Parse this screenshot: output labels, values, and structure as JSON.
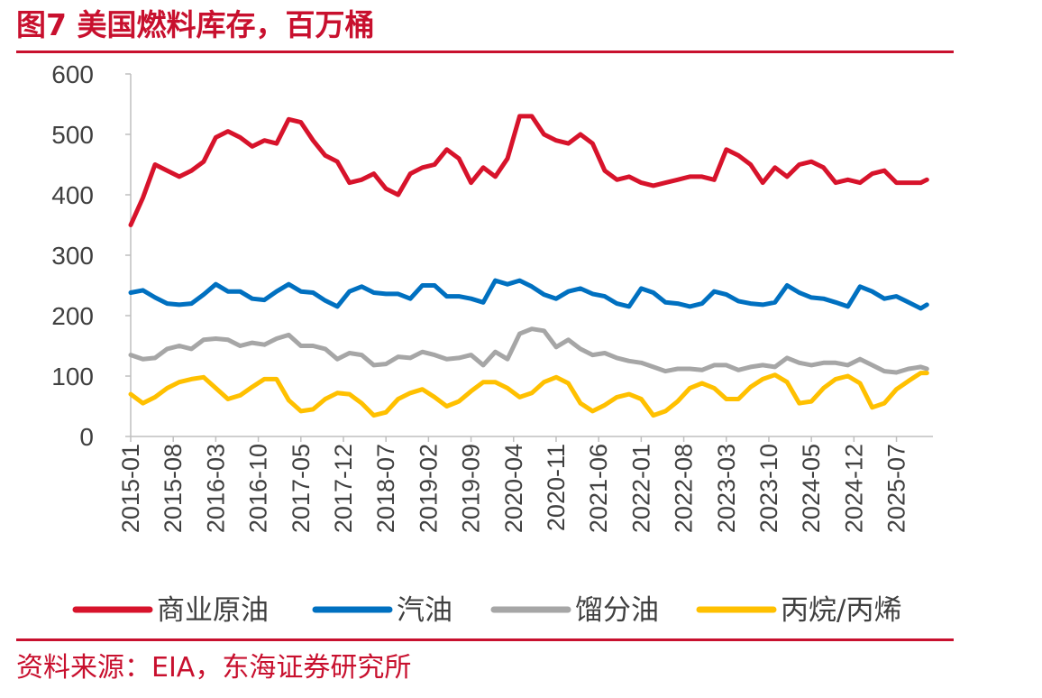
{
  "figure": {
    "title": "图7  美国燃料库存，百万桶",
    "source": "资料来源：EIA，东海证券研究所"
  },
  "chart_data": {
    "type": "line",
    "ylim": [
      0,
      600
    ],
    "yticks": [
      0,
      100,
      200,
      300,
      400,
      500,
      600
    ],
    "x_range": [
      "2015-01",
      "2026-01"
    ],
    "xtick_labels": [
      "2015-01",
      "2015-08",
      "2016-03",
      "2016-10",
      "2017-05",
      "2017-12",
      "2018-07",
      "2019-02",
      "2019-09",
      "2020-04",
      "2020-11",
      "2021-06",
      "2022-01",
      "2022-08",
      "2023-03",
      "2023-10",
      "2024-05",
      "2024-12",
      "2025-07"
    ],
    "grid": false,
    "legend_position": "bottom",
    "series": [
      {
        "name": "商业原油",
        "color": "#d7132b",
        "points": [
          [
            "2015-01",
            350
          ],
          [
            "2015-03",
            395
          ],
          [
            "2015-05",
            450
          ],
          [
            "2015-07",
            440
          ],
          [
            "2015-09",
            430
          ],
          [
            "2015-11",
            440
          ],
          [
            "2016-01",
            455
          ],
          [
            "2016-03",
            495
          ],
          [
            "2016-05",
            505
          ],
          [
            "2016-07",
            495
          ],
          [
            "2016-09",
            480
          ],
          [
            "2016-11",
            490
          ],
          [
            "2017-01",
            485
          ],
          [
            "2017-03",
            525
          ],
          [
            "2017-05",
            520
          ],
          [
            "2017-07",
            490
          ],
          [
            "2017-09",
            465
          ],
          [
            "2017-11",
            455
          ],
          [
            "2018-01",
            420
          ],
          [
            "2018-03",
            425
          ],
          [
            "2018-05",
            435
          ],
          [
            "2018-07",
            410
          ],
          [
            "2018-09",
            400
          ],
          [
            "2018-11",
            435
          ],
          [
            "2019-01",
            445
          ],
          [
            "2019-03",
            450
          ],
          [
            "2019-05",
            475
          ],
          [
            "2019-07",
            460
          ],
          [
            "2019-09",
            420
          ],
          [
            "2019-11",
            445
          ],
          [
            "2020-01",
            430
          ],
          [
            "2020-03",
            460
          ],
          [
            "2020-05",
            530
          ],
          [
            "2020-07",
            530
          ],
          [
            "2020-09",
            500
          ],
          [
            "2020-11",
            490
          ],
          [
            "2021-01",
            485
          ],
          [
            "2021-03",
            500
          ],
          [
            "2021-05",
            485
          ],
          [
            "2021-07",
            440
          ],
          [
            "2021-09",
            425
          ],
          [
            "2021-11",
            430
          ],
          [
            "2022-01",
            420
          ],
          [
            "2022-03",
            415
          ],
          [
            "2022-05",
            420
          ],
          [
            "2022-07",
            425
          ],
          [
            "2022-09",
            430
          ],
          [
            "2022-11",
            430
          ],
          [
            "2023-01",
            425
          ],
          [
            "2023-03",
            475
          ],
          [
            "2023-05",
            465
          ],
          [
            "2023-07",
            450
          ],
          [
            "2023-09",
            420
          ],
          [
            "2023-11",
            445
          ],
          [
            "2024-01",
            430
          ],
          [
            "2024-03",
            450
          ],
          [
            "2024-05",
            455
          ],
          [
            "2024-07",
            445
          ],
          [
            "2024-09",
            420
          ],
          [
            "2024-11",
            425
          ],
          [
            "2025-01",
            420
          ],
          [
            "2025-03",
            435
          ],
          [
            "2025-05",
            440
          ],
          [
            "2025-07",
            420
          ],
          [
            "2025-09",
            420
          ],
          [
            "2025-11",
            420
          ],
          [
            "2025-12",
            425
          ]
        ]
      },
      {
        "name": "汽油",
        "color": "#0070c0",
        "points": [
          [
            "2015-01",
            238
          ],
          [
            "2015-03",
            242
          ],
          [
            "2015-05",
            230
          ],
          [
            "2015-07",
            220
          ],
          [
            "2015-09",
            218
          ],
          [
            "2015-11",
            220
          ],
          [
            "2016-01",
            235
          ],
          [
            "2016-03",
            252
          ],
          [
            "2016-05",
            240
          ],
          [
            "2016-07",
            240
          ],
          [
            "2016-09",
            228
          ],
          [
            "2016-11",
            226
          ],
          [
            "2017-01",
            240
          ],
          [
            "2017-03",
            252
          ],
          [
            "2017-05",
            240
          ],
          [
            "2017-07",
            238
          ],
          [
            "2017-09",
            225
          ],
          [
            "2017-11",
            215
          ],
          [
            "2018-01",
            240
          ],
          [
            "2018-03",
            248
          ],
          [
            "2018-05",
            238
          ],
          [
            "2018-07",
            236
          ],
          [
            "2018-09",
            236
          ],
          [
            "2018-11",
            228
          ],
          [
            "2019-01",
            250
          ],
          [
            "2019-03",
            250
          ],
          [
            "2019-05",
            232
          ],
          [
            "2019-07",
            232
          ],
          [
            "2019-09",
            228
          ],
          [
            "2019-11",
            222
          ],
          [
            "2020-01",
            258
          ],
          [
            "2020-03",
            252
          ],
          [
            "2020-05",
            258
          ],
          [
            "2020-07",
            248
          ],
          [
            "2020-09",
            235
          ],
          [
            "2020-11",
            228
          ],
          [
            "2021-01",
            240
          ],
          [
            "2021-03",
            245
          ],
          [
            "2021-05",
            236
          ],
          [
            "2021-07",
            232
          ],
          [
            "2021-09",
            220
          ],
          [
            "2021-11",
            215
          ],
          [
            "2022-01",
            245
          ],
          [
            "2022-03",
            238
          ],
          [
            "2022-05",
            222
          ],
          [
            "2022-07",
            220
          ],
          [
            "2022-09",
            215
          ],
          [
            "2022-11",
            220
          ],
          [
            "2023-01",
            240
          ],
          [
            "2023-03",
            235
          ],
          [
            "2023-05",
            224
          ],
          [
            "2023-07",
            220
          ],
          [
            "2023-09",
            218
          ],
          [
            "2023-11",
            222
          ],
          [
            "2024-01",
            250
          ],
          [
            "2024-03",
            238
          ],
          [
            "2024-05",
            230
          ],
          [
            "2024-07",
            228
          ],
          [
            "2024-09",
            222
          ],
          [
            "2024-11",
            215
          ],
          [
            "2025-01",
            248
          ],
          [
            "2025-03",
            240
          ],
          [
            "2025-05",
            228
          ],
          [
            "2025-07",
            232
          ],
          [
            "2025-09",
            222
          ],
          [
            "2025-11",
            212
          ],
          [
            "2025-12",
            218
          ]
        ]
      },
      {
        "name": "馏分油",
        "color": "#a6a6a6",
        "points": [
          [
            "2015-01",
            135
          ],
          [
            "2015-03",
            128
          ],
          [
            "2015-05",
            130
          ],
          [
            "2015-07",
            145
          ],
          [
            "2015-09",
            150
          ],
          [
            "2015-11",
            145
          ],
          [
            "2016-01",
            160
          ],
          [
            "2016-03",
            162
          ],
          [
            "2016-05",
            160
          ],
          [
            "2016-07",
            150
          ],
          [
            "2016-09",
            155
          ],
          [
            "2016-11",
            152
          ],
          [
            "2017-01",
            162
          ],
          [
            "2017-03",
            168
          ],
          [
            "2017-05",
            150
          ],
          [
            "2017-07",
            150
          ],
          [
            "2017-09",
            145
          ],
          [
            "2017-11",
            128
          ],
          [
            "2018-01",
            138
          ],
          [
            "2018-03",
            135
          ],
          [
            "2018-05",
            118
          ],
          [
            "2018-07",
            120
          ],
          [
            "2018-09",
            132
          ],
          [
            "2018-11",
            130
          ],
          [
            "2019-01",
            140
          ],
          [
            "2019-03",
            135
          ],
          [
            "2019-05",
            128
          ],
          [
            "2019-07",
            130
          ],
          [
            "2019-09",
            135
          ],
          [
            "2019-11",
            118
          ],
          [
            "2020-01",
            140
          ],
          [
            "2020-03",
            128
          ],
          [
            "2020-05",
            170
          ],
          [
            "2020-07",
            178
          ],
          [
            "2020-09",
            175
          ],
          [
            "2020-11",
            148
          ],
          [
            "2021-01",
            160
          ],
          [
            "2021-03",
            145
          ],
          [
            "2021-05",
            135
          ],
          [
            "2021-07",
            138
          ],
          [
            "2021-09",
            130
          ],
          [
            "2021-11",
            125
          ],
          [
            "2022-01",
            122
          ],
          [
            "2022-03",
            115
          ],
          [
            "2022-05",
            108
          ],
          [
            "2022-07",
            112
          ],
          [
            "2022-09",
            112
          ],
          [
            "2022-11",
            110
          ],
          [
            "2023-01",
            118
          ],
          [
            "2023-03",
            118
          ],
          [
            "2023-05",
            110
          ],
          [
            "2023-07",
            115
          ],
          [
            "2023-09",
            118
          ],
          [
            "2023-11",
            115
          ],
          [
            "2024-01",
            130
          ],
          [
            "2024-03",
            122
          ],
          [
            "2024-05",
            118
          ],
          [
            "2024-07",
            122
          ],
          [
            "2024-09",
            122
          ],
          [
            "2024-11",
            118
          ],
          [
            "2025-01",
            128
          ],
          [
            "2025-03",
            118
          ],
          [
            "2025-05",
            108
          ],
          [
            "2025-07",
            106
          ],
          [
            "2025-09",
            112
          ],
          [
            "2025-11",
            115
          ],
          [
            "2025-12",
            112
          ]
        ]
      },
      {
        "name": "丙烷/丙烯",
        "color": "#ffc000",
        "points": [
          [
            "2015-01",
            70
          ],
          [
            "2015-03",
            55
          ],
          [
            "2015-05",
            65
          ],
          [
            "2015-07",
            80
          ],
          [
            "2015-09",
            90
          ],
          [
            "2015-11",
            95
          ],
          [
            "2016-01",
            98
          ],
          [
            "2016-03",
            80
          ],
          [
            "2016-05",
            62
          ],
          [
            "2016-07",
            68
          ],
          [
            "2016-09",
            82
          ],
          [
            "2016-11",
            95
          ],
          [
            "2017-01",
            95
          ],
          [
            "2017-03",
            60
          ],
          [
            "2017-05",
            42
          ],
          [
            "2017-07",
            45
          ],
          [
            "2017-09",
            62
          ],
          [
            "2017-11",
            72
          ],
          [
            "2018-01",
            70
          ],
          [
            "2018-03",
            55
          ],
          [
            "2018-05",
            35
          ],
          [
            "2018-07",
            40
          ],
          [
            "2018-09",
            62
          ],
          [
            "2018-11",
            72
          ],
          [
            "2019-01",
            78
          ],
          [
            "2019-03",
            65
          ],
          [
            "2019-05",
            50
          ],
          [
            "2019-07",
            58
          ],
          [
            "2019-09",
            75
          ],
          [
            "2019-11",
            90
          ],
          [
            "2020-01",
            90
          ],
          [
            "2020-03",
            80
          ],
          [
            "2020-05",
            65
          ],
          [
            "2020-07",
            72
          ],
          [
            "2020-09",
            90
          ],
          [
            "2020-11",
            98
          ],
          [
            "2021-01",
            88
          ],
          [
            "2021-03",
            55
          ],
          [
            "2021-05",
            42
          ],
          [
            "2021-07",
            52
          ],
          [
            "2021-09",
            65
          ],
          [
            "2021-11",
            70
          ],
          [
            "2022-01",
            62
          ],
          [
            "2022-03",
            35
          ],
          [
            "2022-05",
            42
          ],
          [
            "2022-07",
            58
          ],
          [
            "2022-09",
            80
          ],
          [
            "2022-11",
            88
          ],
          [
            "2023-01",
            80
          ],
          [
            "2023-03",
            62
          ],
          [
            "2023-05",
            62
          ],
          [
            "2023-07",
            82
          ],
          [
            "2023-09",
            95
          ],
          [
            "2023-11",
            102
          ],
          [
            "2024-01",
            90
          ],
          [
            "2024-03",
            55
          ],
          [
            "2024-05",
            58
          ],
          [
            "2024-07",
            80
          ],
          [
            "2024-09",
            95
          ],
          [
            "2024-11",
            100
          ],
          [
            "2025-01",
            88
          ],
          [
            "2025-03",
            48
          ],
          [
            "2025-05",
            55
          ],
          [
            "2025-07",
            78
          ],
          [
            "2025-09",
            92
          ],
          [
            "2025-11",
            105
          ],
          [
            "2025-12",
            105
          ]
        ]
      }
    ]
  }
}
